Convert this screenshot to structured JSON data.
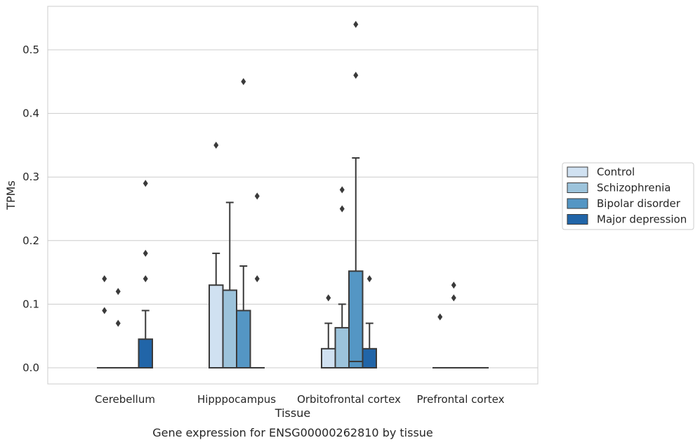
{
  "chart_data": {
    "type": "box",
    "caption": "Gene expression for ENSG00000262810 by tissue",
    "xlabel": "Tissue",
    "ylabel": "TPMs",
    "ylim": [
      -0.026,
      0.57
    ],
    "yticks": [
      0.0,
      0.1,
      0.2,
      0.3,
      0.4,
      0.5
    ],
    "ytick_labels": [
      "0.0",
      "0.1",
      "0.2",
      "0.3",
      "0.4",
      "0.5"
    ],
    "grid": "horizontal",
    "legend_position": "right",
    "categories": [
      "Cerebellum",
      "Hipppocampus",
      "Orbitofrontal cortex",
      "Prefrontal cortex"
    ],
    "series": [
      {
        "name": "Control",
        "color": "#d0e1f1",
        "boxes": [
          {
            "q1": 0.0,
            "median": 0.0,
            "q3": 0.0,
            "whisker_low": 0.0,
            "whisker_high": 0.0,
            "outliers": [
              0.09,
              0.14
            ]
          },
          {
            "q1": 0.0,
            "median": 0.0,
            "q3": 0.13,
            "whisker_low": 0.0,
            "whisker_high": 0.18,
            "outliers": [
              0.35
            ]
          },
          {
            "q1": 0.0,
            "median": 0.0,
            "q3": 0.03,
            "whisker_low": 0.0,
            "whisker_high": 0.07,
            "outliers": [
              0.11
            ]
          },
          {
            "q1": 0.0,
            "median": 0.0,
            "q3": 0.0,
            "whisker_low": 0.0,
            "whisker_high": 0.0,
            "outliers": [
              0.08
            ]
          }
        ]
      },
      {
        "name": "Schizophrenia",
        "color": "#9cc3db",
        "boxes": [
          {
            "q1": 0.0,
            "median": 0.0,
            "q3": 0.0,
            "whisker_low": 0.0,
            "whisker_high": 0.0,
            "outliers": [
              0.07,
              0.12
            ]
          },
          {
            "q1": 0.0,
            "median": 0.0,
            "q3": 0.122,
            "whisker_low": 0.0,
            "whisker_high": 0.26,
            "outliers": []
          },
          {
            "q1": 0.0,
            "median": 0.0,
            "q3": 0.063,
            "whisker_low": 0.0,
            "whisker_high": 0.1,
            "outliers": [
              0.25,
              0.28
            ]
          },
          {
            "q1": 0.0,
            "median": 0.0,
            "q3": 0.0,
            "whisker_low": 0.0,
            "whisker_high": 0.0,
            "outliers": [
              0.11,
              0.13
            ]
          }
        ]
      },
      {
        "name": "Bipolar disorder",
        "color": "#5496c4",
        "boxes": [
          {
            "q1": 0.0,
            "median": 0.0,
            "q3": 0.0,
            "whisker_low": 0.0,
            "whisker_high": 0.0,
            "outliers": []
          },
          {
            "q1": 0.0,
            "median": 0.0,
            "q3": 0.09,
            "whisker_low": 0.0,
            "whisker_high": 0.16,
            "outliers": [
              0.45
            ]
          },
          {
            "q1": 0.0,
            "median": 0.01,
            "q3": 0.152,
            "whisker_low": 0.0,
            "whisker_high": 0.33,
            "outliers": [
              0.46,
              0.54
            ]
          },
          {
            "q1": 0.0,
            "median": 0.0,
            "q3": 0.0,
            "whisker_low": 0.0,
            "whisker_high": 0.0,
            "outliers": []
          }
        ]
      },
      {
        "name": "Major depression",
        "color": "#2165a8",
        "boxes": [
          {
            "q1": 0.0,
            "median": 0.0,
            "q3": 0.045,
            "whisker_low": 0.0,
            "whisker_high": 0.09,
            "outliers": [
              0.14,
              0.18,
              0.29
            ]
          },
          {
            "q1": 0.0,
            "median": 0.0,
            "q3": 0.0,
            "whisker_low": 0.0,
            "whisker_high": 0.0,
            "outliers": [
              0.14,
              0.27
            ]
          },
          {
            "q1": 0.0,
            "median": 0.0,
            "q3": 0.03,
            "whisker_low": 0.0,
            "whisker_high": 0.07,
            "outliers": [
              0.14
            ]
          },
          {
            "q1": 0.0,
            "median": 0.0,
            "q3": 0.0,
            "whisker_low": 0.0,
            "whisker_high": 0.0,
            "outliers": []
          }
        ]
      }
    ]
  },
  "colors": {
    "grid": "#cccccc",
    "frame": "#cccccc",
    "line": "#3a3a3a"
  }
}
